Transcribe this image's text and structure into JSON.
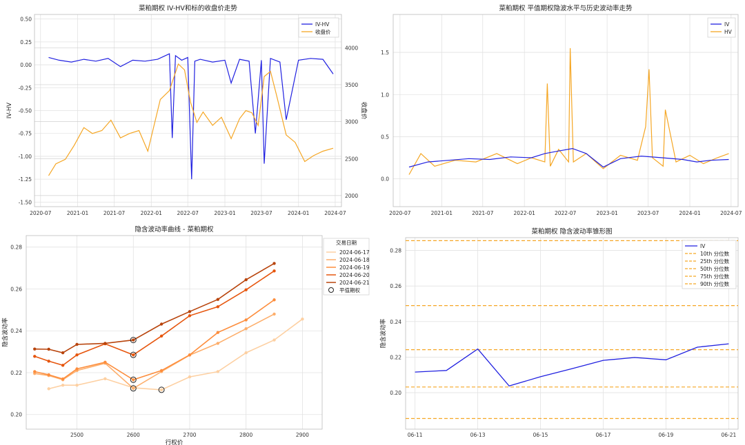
{
  "colors": {
    "iv": "#1f1fe0",
    "hv": "#f5a623",
    "close": "#f5a623",
    "left_axis": "#1f77b4",
    "right_axis": "#d62728",
    "quantile": "#f5a623",
    "skew": [
      "#fdd0a2",
      "#fdae6b",
      "#fd8d3c",
      "#e6550d",
      "#b8440c"
    ]
  },
  "chart_data": [
    {
      "type": "line",
      "title": "菜粕期权 IV-HV和标的收盘价走势",
      "ylabel": "IV-HV",
      "y2label": "收盘价",
      "xticks": [
        "2020-07",
        "2021-01",
        "2021-07",
        "2022-01",
        "2022-07",
        "2023-01",
        "2023-07",
        "2024-01",
        "2024-07"
      ],
      "yticks": [
        "0.50",
        "0.25",
        "0.00",
        "-0.25",
        "-0.50",
        "-0.75",
        "-1.00",
        "-1.25",
        "-1.50"
      ],
      "y2ticks": [
        "4000",
        "3500",
        "3000",
        "2500",
        "2000"
      ],
      "ylim": [
        -1.55,
        0.55
      ],
      "y2lim": [
        1850,
        4450
      ],
      "legend": [
        "IV-HV",
        "收盘价"
      ],
      "series": [
        {
          "name": "IV-HV",
          "x": [
            "2020-08-10",
            "2020-10-01",
            "2020-12-01",
            "2021-02-01",
            "2021-04-01",
            "2021-06-01",
            "2021-08-01",
            "2021-10-01",
            "2021-12-01",
            "2022-02-01",
            "2022-04-01",
            "2022-04-15",
            "2022-05-01",
            "2022-06-01",
            "2022-07-01",
            "2022-07-20",
            "2022-08-05",
            "2022-09-01",
            "2022-11-01",
            "2023-01-01",
            "2023-02-01",
            "2023-03-15",
            "2023-05-01",
            "2023-06-01",
            "2023-07-01",
            "2023-07-15",
            "2023-08-15",
            "2023-10-01",
            "2023-11-01",
            "2024-01-01",
            "2024-03-01",
            "2024-05-01",
            "2024-06-21"
          ],
          "values": [
            0.08,
            0.05,
            0.03,
            0.06,
            0.04,
            0.07,
            -0.02,
            0.05,
            0.04,
            0.06,
            0.12,
            -0.8,
            0.1,
            0.05,
            0.08,
            -1.25,
            0.04,
            0.06,
            0.03,
            0.05,
            -0.2,
            0.06,
            0.04,
            -0.75,
            0.05,
            -1.08,
            0.07,
            0.03,
            -0.6,
            0.05,
            0.07,
            0.06,
            -0.1
          ]
        },
        {
          "name": "收盘价",
          "x": [
            "2020-08-10",
            "2020-09-15",
            "2020-11-01",
            "2020-12-15",
            "2021-02-01",
            "2021-03-15",
            "2021-05-01",
            "2021-06-15",
            "2021-08-01",
            "2021-09-15",
            "2021-11-01",
            "2021-12-15",
            "2022-02-15",
            "2022-04-01",
            "2022-05-15",
            "2022-06-15",
            "2022-07-15",
            "2022-08-15",
            "2022-09-15",
            "2022-11-01",
            "2022-12-15",
            "2023-02-01",
            "2023-03-15",
            "2023-04-15",
            "2023-05-15",
            "2023-06-15",
            "2023-07-15",
            "2023-08-15",
            "2023-09-15",
            "2023-11-01",
            "2023-12-15",
            "2024-02-01",
            "2024-03-15",
            "2024-05-01",
            "2024-06-21"
          ],
          "values": [
            2270,
            2430,
            2490,
            2680,
            2920,
            2840,
            2880,
            3020,
            2780,
            2840,
            2880,
            2600,
            3300,
            3420,
            3780,
            3700,
            3260,
            2990,
            3130,
            2950,
            3060,
            2770,
            3040,
            3150,
            3120,
            2950,
            3610,
            3680,
            3350,
            2820,
            2720,
            2460,
            2540,
            2600,
            2640
          ]
        }
      ]
    },
    {
      "type": "line",
      "title": "菜粕期权 平值期权隐波水平与历史波动率走势",
      "xticks": [
        "2020-07",
        "2021-01",
        "2021-07",
        "2022-01",
        "2022-07",
        "2023-01",
        "2023-07",
        "2024-01",
        "2024-07"
      ],
      "yticks": [
        "1.5",
        "1.0",
        "0.5",
        "0.0"
      ],
      "ylim": [
        -0.33,
        1.95
      ],
      "legend": [
        "IV",
        "HV"
      ],
      "series": [
        {
          "name": "IV",
          "x": [
            "2020-08-10",
            "2020-11-01",
            "2021-02-01",
            "2021-05-01",
            "2021-08-01",
            "2021-11-01",
            "2022-02-01",
            "2022-04-01",
            "2022-06-01",
            "2022-08-01",
            "2022-10-01",
            "2022-12-15",
            "2023-03-01",
            "2023-06-01",
            "2023-09-01",
            "2023-12-01",
            "2024-02-01",
            "2024-04-01",
            "2024-06-21"
          ],
          "values": [
            0.14,
            0.2,
            0.22,
            0.24,
            0.23,
            0.26,
            0.25,
            0.3,
            0.33,
            0.36,
            0.3,
            0.14,
            0.24,
            0.27,
            0.25,
            0.23,
            0.2,
            0.22,
            0.23
          ]
        },
        {
          "name": "HV",
          "x": [
            "2020-08-10",
            "2020-10-01",
            "2020-12-01",
            "2021-03-01",
            "2021-06-01",
            "2021-09-01",
            "2021-12-01",
            "2022-02-01",
            "2022-04-01",
            "2022-04-12",
            "2022-04-25",
            "2022-06-01",
            "2022-07-15",
            "2022-07-22",
            "2022-08-05",
            "2022-10-01",
            "2022-12-15",
            "2023-03-01",
            "2023-05-15",
            "2023-06-20",
            "2023-07-05",
            "2023-07-20",
            "2023-09-05",
            "2023-09-15",
            "2023-11-01",
            "2024-01-01",
            "2024-03-01",
            "2024-05-01",
            "2024-06-21"
          ],
          "values": [
            0.05,
            0.3,
            0.15,
            0.22,
            0.2,
            0.3,
            0.18,
            0.25,
            0.2,
            1.13,
            0.15,
            0.35,
            0.2,
            1.55,
            0.2,
            0.3,
            0.12,
            0.28,
            0.22,
            0.62,
            1.3,
            0.25,
            0.15,
            0.82,
            0.2,
            0.28,
            0.18,
            0.25,
            0.3
          ]
        }
      ]
    },
    {
      "type": "line",
      "title": "隐含波动率曲线 - 菜粕期权",
      "xlabel": "行权价",
      "ylabel": "隐含波动率",
      "xticks": [
        "2500",
        "2600",
        "2700",
        "2800",
        "2900"
      ],
      "yticks": [
        "0.28",
        "0.26",
        "0.24",
        "0.22",
        "0.20"
      ],
      "xlim": [
        2410,
        2935
      ],
      "ylim": [
        0.193,
        0.2855
      ],
      "legend_title": "交易日期",
      "legend": [
        "2024-06-17",
        "2024-06-18",
        "2024-06-19",
        "2024-06-20",
        "2024-06-21",
        "平值期权"
      ],
      "x": [
        2425,
        2450,
        2475,
        2500,
        2550,
        2600,
        2650,
        2700,
        2750,
        2800,
        2850,
        2900
      ],
      "series": [
        {
          "name": "2024-06-17",
          "values": [
            null,
            0.2123,
            0.214,
            0.214,
            0.2171,
            0.2128,
            0.2118,
            0.218,
            0.2205,
            0.2295,
            0.2356,
            0.2456
          ]
        },
        {
          "name": "2024-06-18",
          "values": [
            0.2196,
            0.2186,
            0.2166,
            0.221,
            0.2245,
            0.2125,
            0.2205,
            0.2284,
            0.234,
            0.241,
            0.248,
            null
          ]
        },
        {
          "name": "2024-06-19",
          "values": [
            0.2205,
            0.219,
            0.217,
            0.2218,
            0.225,
            0.2166,
            0.221,
            0.2285,
            0.2392,
            0.2452,
            0.2548,
            null
          ]
        },
        {
          "name": "2024-06-20",
          "values": [
            0.2278,
            0.2255,
            0.2235,
            0.2285,
            0.2338,
            0.2285,
            0.2375,
            0.2472,
            0.2515,
            0.2596,
            0.2686,
            null
          ]
        },
        {
          "name": "2024-06-21",
          "values": [
            0.2313,
            0.2312,
            0.2295,
            0.2335,
            0.234,
            0.2356,
            0.2432,
            0.2492,
            0.255,
            0.2644,
            0.2722,
            null
          ]
        }
      ],
      "atm_points": [
        [
          2600,
          0.2356
        ],
        [
          2600,
          0.2285
        ],
        [
          2600,
          0.2166
        ],
        [
          2600,
          0.2125
        ],
        [
          2650,
          0.2118
        ]
      ]
    },
    {
      "type": "line",
      "title": "菜粕期权 隐含波动率锥形图",
      "ylabel": "隐含波动率",
      "xticks": [
        "06-11",
        "06-13",
        "06-15",
        "06-17",
        "06-19",
        "06-21"
      ],
      "yticks": [
        "0.28",
        "0.26",
        "0.24",
        "0.22",
        "0.20"
      ],
      "ylim": [
        0.1795,
        0.2872
      ],
      "legend": [
        "IV",
        "10th 分位数",
        "25th 分位数",
        "50th 分位数",
        "75th 分位数",
        "90th 分位数"
      ],
      "x": [
        "06-11",
        "06-12",
        "06-13",
        "06-14",
        "06-15",
        "06-16",
        "06-17",
        "06-18",
        "06-19",
        "06-20",
        "06-21"
      ],
      "series": [
        {
          "name": "IV",
          "values": [
            0.2116,
            0.2125,
            0.2246,
            0.2038,
            0.209,
            0.2135,
            0.2182,
            0.2198,
            0.2185,
            0.2256,
            0.2275
          ]
        }
      ],
      "quantiles": [
        0.1855,
        0.2032,
        0.2242,
        0.249,
        0.2855
      ]
    }
  ]
}
